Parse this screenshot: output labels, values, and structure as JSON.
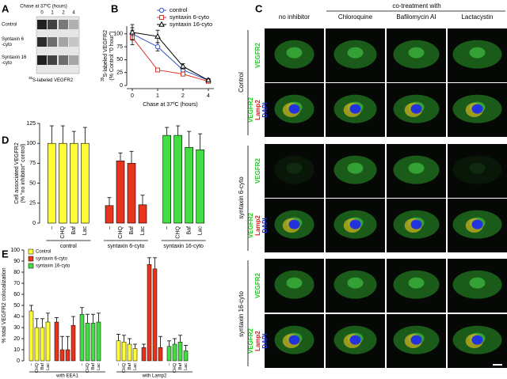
{
  "panel_letters": [
    "A",
    "B",
    "C",
    "D",
    "E"
  ],
  "blot": {
    "title": "Chase at 37ºC (hours)",
    "lanes": [
      "0",
      "1",
      "2",
      "4"
    ],
    "rows": [
      [
        "Control"
      ],
      [
        "Syntaxin 6",
        "-cyto"
      ],
      [
        "Syntaxin 16",
        "-cyto"
      ]
    ],
    "caption_sup": "35",
    "caption": "S-labeled VEGFR2"
  },
  "microscopy": {
    "header": "co-treatment with",
    "columns": [
      "no inhibitor",
      "Chloroquine",
      "Bafilomycin AI",
      "Lactacystin"
    ],
    "row_groups": [
      "Control",
      "syntaxin 6-cyto",
      "syntaxin 16-cyto"
    ],
    "channels": [
      "VEGFR2",
      "Lamp2",
      "DAPI"
    ]
  },
  "chart_data": [
    {
      "type": "line",
      "ylabel_sup": "35",
      "ylabel": "S-labeled VEGFR2",
      "ylabel2": "(% Control \"0 hour\")",
      "xlabel": "Chase at 37ºC (hours)",
      "categories": [
        "0",
        "1",
        "2",
        "4"
      ],
      "ylim": [
        0,
        115
      ],
      "yticks": [
        0,
        25,
        50,
        75,
        100
      ],
      "legend": "upper right",
      "series": [
        {
          "name": "control",
          "color": "#3355cc",
          "marker": "circle",
          "values": [
            100,
            75,
            30,
            10
          ],
          "errors": [
            12,
            8,
            4,
            3
          ]
        },
        {
          "name": "syntaxin 6-cyto",
          "color": "#dd3322",
          "marker": "square",
          "values": [
            93,
            30,
            22,
            8
          ],
          "errors": [
            14,
            3,
            3,
            2
          ]
        },
        {
          "name": "syntaxin 16-cyto",
          "color": "#000000",
          "marker": "triangle",
          "values": [
            103,
            95,
            37,
            10
          ],
          "errors": [
            15,
            12,
            5,
            3
          ]
        }
      ]
    },
    {
      "type": "bar",
      "ylabel": "Cell associated VEGFR2",
      "ylabel2": "(% \"no inhibitor\" control)",
      "categories": [
        "–",
        "CHQ",
        "Baf",
        "Lac"
      ],
      "ylim": [
        0,
        125
      ],
      "yticks": [
        0,
        25,
        50,
        75,
        100,
        125
      ],
      "series": [
        {
          "name": "control",
          "color": "#ffff33",
          "values": [
            100,
            100,
            100,
            100
          ],
          "errors": [
            22,
            22,
            15,
            20
          ]
        },
        {
          "name": "syntaxin 6-cyto",
          "color": "#e8341c",
          "values": [
            22,
            78,
            75,
            23
          ],
          "errors": [
            10,
            10,
            15,
            12
          ]
        },
        {
          "name": "syntaxin 16-cyto",
          "color": "#44dd44",
          "values": [
            110,
            110,
            95,
            92
          ],
          "errors": [
            10,
            12,
            20,
            20
          ]
        }
      ]
    },
    {
      "type": "bar",
      "ylabel": "% total VEGFR2 colocalization",
      "groups": [
        "with EEA1",
        "with Lamp2"
      ],
      "categories": [
        "–",
        "CHQ",
        "Baf",
        "Lac",
        "–",
        "CHQ",
        "Baf",
        "Lac"
      ],
      "ylim": [
        0,
        100
      ],
      "yticks": [
        0,
        10,
        20,
        30,
        40,
        50,
        60,
        70,
        80,
        90,
        100
      ],
      "legend": "upper left",
      "series": [
        {
          "name": "Control",
          "color": "#ffff33",
          "values": [
            45,
            30,
            30,
            35,
            18,
            17,
            15,
            11
          ],
          "errors": [
            5,
            8,
            8,
            8,
            6,
            6,
            5,
            4
          ]
        },
        {
          "name": "syntaxin 6-cyto",
          "color": "#e8341c",
          "values": [
            35,
            10,
            10,
            32,
            12,
            87,
            83,
            12
          ],
          "errors": [
            4,
            12,
            12,
            8,
            3,
            6,
            10,
            10
          ]
        },
        {
          "name": "syntaxin 16-cyto",
          "color": "#44dd44",
          "values": [
            42,
            34,
            34,
            35,
            13,
            15,
            17,
            9
          ],
          "errors": [
            6,
            8,
            8,
            8,
            5,
            5,
            6,
            5
          ]
        }
      ]
    }
  ]
}
